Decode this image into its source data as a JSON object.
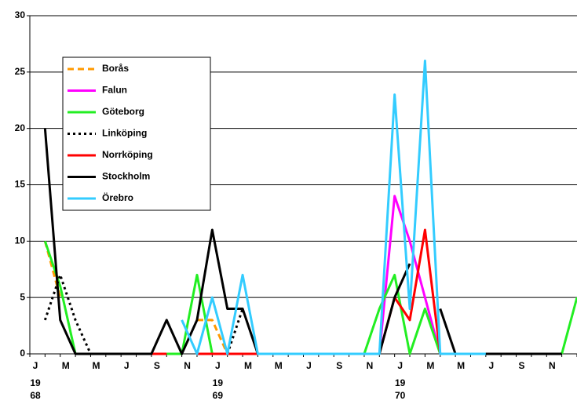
{
  "chart_data": {
    "type": "line",
    "categories": [
      "J",
      null,
      "M",
      null,
      "M",
      null,
      "J",
      null,
      "S",
      null,
      "N",
      null,
      "J",
      null,
      "M",
      null,
      "M",
      null,
      "J",
      null,
      "S",
      null,
      "N",
      null,
      "J",
      null,
      "M",
      null,
      "M",
      null,
      "J",
      null,
      "S",
      null,
      "N",
      null,
      null
    ],
    "x_year_labels": [
      [
        "19",
        "68"
      ],
      null,
      null,
      null,
      null,
      null,
      null,
      null,
      null,
      null,
      null,
      null,
      [
        "19",
        "69"
      ],
      null,
      null,
      null,
      null,
      null,
      null,
      null,
      null,
      null,
      null,
      null,
      [
        "19",
        "70"
      ],
      null,
      null,
      null,
      null,
      null,
      null,
      null,
      null,
      null,
      null,
      null,
      null
    ],
    "ylim": [
      0,
      30
    ],
    "yticks": [
      0,
      5,
      10,
      15,
      20,
      25,
      30
    ],
    "grid": true,
    "legend": "upper left",
    "series": [
      {
        "name": "Borås",
        "color": "#ff9900",
        "dash": "dashed",
        "values": [
          null,
          10,
          5,
          null,
          null,
          null,
          null,
          null,
          null,
          null,
          null,
          3,
          3,
          0,
          null,
          null,
          null,
          null,
          null,
          null,
          null,
          null,
          null,
          null,
          null,
          null,
          null,
          null,
          null,
          null,
          null,
          null,
          null,
          null,
          null,
          null,
          null
        ]
      },
      {
        "name": "Falun",
        "color": "#ff00ff",
        "dash": "solid",
        "values": [
          null,
          null,
          null,
          null,
          null,
          null,
          null,
          null,
          null,
          null,
          null,
          null,
          null,
          null,
          null,
          null,
          null,
          null,
          null,
          null,
          null,
          null,
          null,
          0,
          14,
          10,
          5,
          0,
          null,
          null,
          null,
          null,
          null,
          null,
          null,
          null,
          null
        ]
      },
      {
        "name": "Göteborg",
        "color": "#22ee22",
        "dash": "solid",
        "values": [
          null,
          10,
          6,
          0,
          null,
          null,
          null,
          null,
          null,
          0,
          0,
          7,
          0,
          null,
          null,
          null,
          null,
          null,
          null,
          null,
          null,
          null,
          0,
          4,
          7,
          0,
          4,
          0,
          null,
          null,
          null,
          null,
          null,
          null,
          null,
          0,
          5
        ]
      },
      {
        "name": "Linköping",
        "color": "#000000",
        "dash": "dotted",
        "values": [
          null,
          3,
          7,
          3,
          0,
          null,
          null,
          null,
          null,
          null,
          null,
          null,
          null,
          0,
          4,
          null,
          null,
          null,
          null,
          null,
          null,
          null,
          null,
          null,
          null,
          null,
          null,
          null,
          null,
          null,
          null,
          null,
          null,
          null,
          null,
          null,
          null
        ]
      },
      {
        "name": "Norrköping",
        "color": "#ff0000",
        "dash": "solid",
        "values": [
          null,
          null,
          null,
          null,
          null,
          null,
          null,
          null,
          0,
          0,
          null,
          0,
          0,
          0,
          0,
          0,
          null,
          null,
          null,
          null,
          null,
          null,
          null,
          0,
          5,
          3,
          11,
          0,
          null,
          null,
          null,
          null,
          null,
          null,
          null,
          null,
          null
        ]
      },
      {
        "name": "Stockholm",
        "color": "#000000",
        "dash": "solid",
        "values": [
          null,
          20,
          3,
          0,
          0,
          0,
          0,
          0,
          0,
          3,
          0,
          3,
          11,
          4,
          4,
          0,
          0,
          0,
          0,
          0,
          0,
          0,
          0,
          0,
          5,
          8,
          null,
          4,
          0,
          0,
          0,
          0,
          0,
          0,
          0,
          0,
          null
        ]
      },
      {
        "name": "Örebro",
        "color": "#33ccff",
        "dash": "solid",
        "values": [
          null,
          null,
          null,
          null,
          null,
          null,
          null,
          null,
          null,
          null,
          3,
          0,
          5,
          0,
          7,
          0,
          0,
          0,
          0,
          0,
          0,
          0,
          0,
          0,
          23,
          4,
          26,
          0,
          0,
          0,
          0,
          null,
          null,
          null,
          null,
          null,
          null
        ]
      }
    ]
  }
}
